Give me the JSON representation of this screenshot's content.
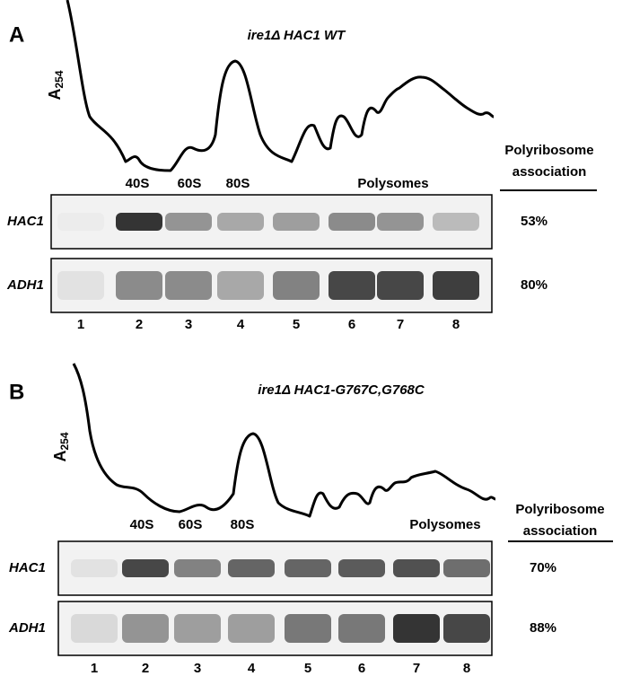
{
  "panels": [
    {
      "label": "A",
      "title": "ire1Δ  HAC1 WT",
      "axis_label": {
        "main": "A",
        "sub": "254"
      },
      "fractions": [
        "40S",
        "60S",
        "80S",
        "Polysomes"
      ],
      "association_header": [
        "Polyribosome",
        "association"
      ],
      "rows": [
        {
          "gene": "HAC1",
          "association": "53%"
        },
        {
          "gene": "ADH1",
          "association": "80%"
        }
      ],
      "lanes": [
        1,
        2,
        3,
        4,
        5,
        6,
        7,
        8
      ]
    },
    {
      "label": "B",
      "title": "ire1Δ HAC1-G767C,G768C",
      "axis_label": {
        "main": "A",
        "sub": "254"
      },
      "fractions": [
        "40S",
        "60S",
        "80S",
        "Polysomes"
      ],
      "association_header": [
        "Polyribosome",
        "association"
      ],
      "rows": [
        {
          "gene": "HAC1",
          "association": "70%"
        },
        {
          "gene": "ADH1",
          "association": "88%"
        }
      ],
      "lanes": [
        1,
        2,
        3,
        4,
        5,
        6,
        7,
        8
      ]
    }
  ]
}
